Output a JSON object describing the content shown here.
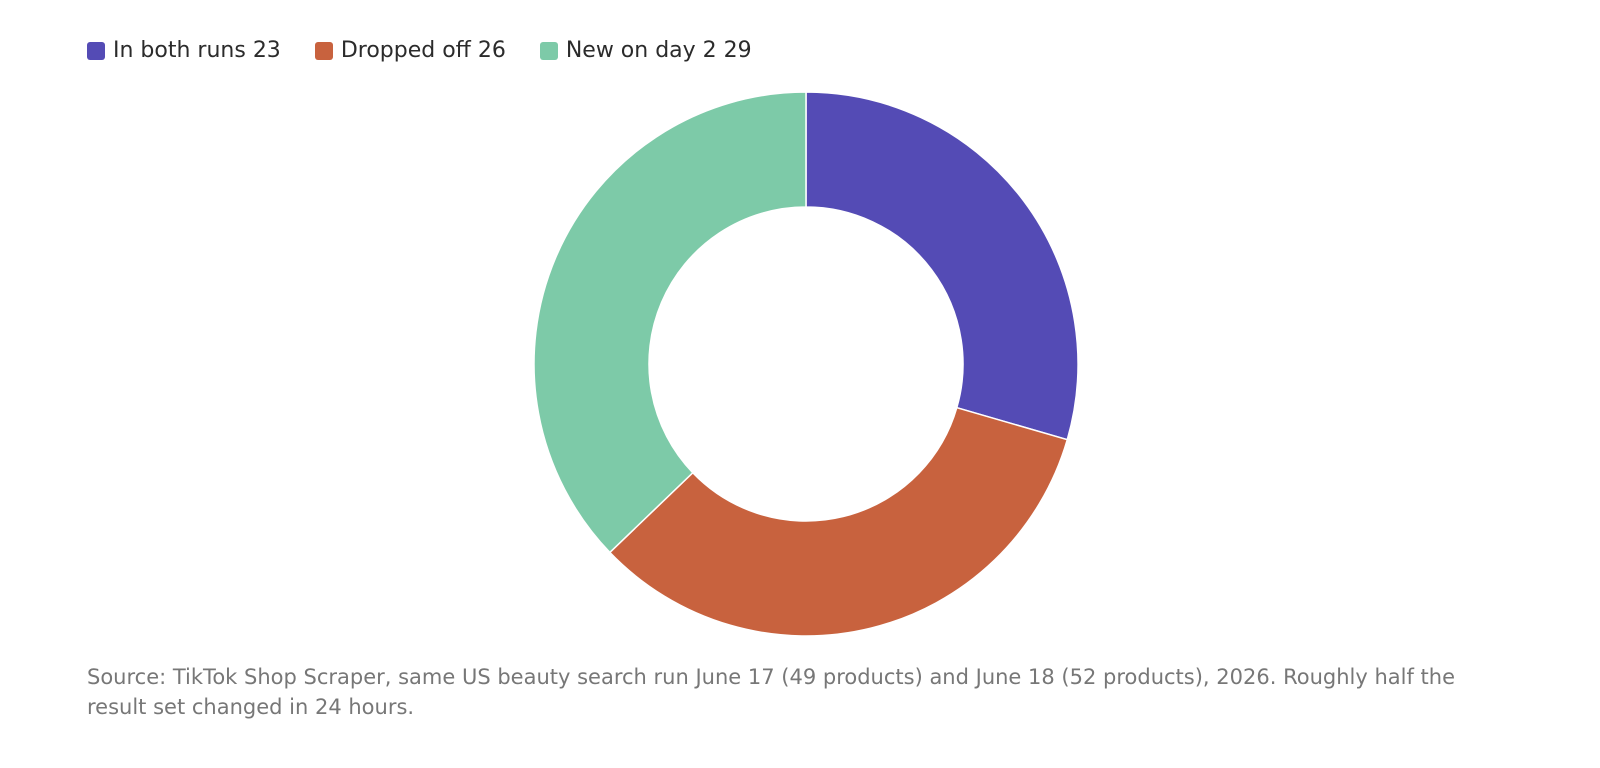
{
  "chart_data": {
    "type": "donut",
    "categories": [
      "In both runs",
      "Dropped off",
      "New on day 2"
    ],
    "values": [
      23,
      26,
      29
    ],
    "colors": [
      "#544bb5",
      "#c8623e",
      "#7dcaa8"
    ],
    "legend": "top-left",
    "caption": "Source: TikTok Shop Scraper, same US beauty search run June 17 (49 products) and June 18 (52 products), 2026. Roughly half the result set changed in 24 hours."
  }
}
